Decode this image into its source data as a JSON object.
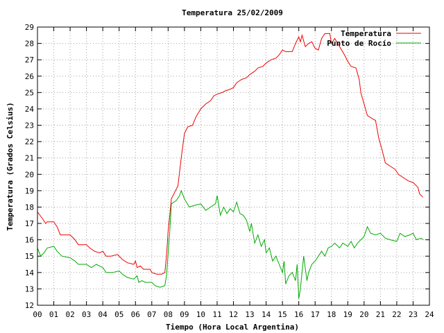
{
  "chart_data": {
    "type": "line",
    "title": "Temperatura 25/02/2009",
    "xlabel": "Tiempo (Hora Local Argentina)",
    "ylabel": "Temperatura (Grados Celsius)",
    "xlim": [
      0,
      24
    ],
    "ylim": [
      12,
      29
    ],
    "x_ticks": [
      "00",
      "01",
      "02",
      "03",
      "04",
      "05",
      "06",
      "07",
      "08",
      "09",
      "10",
      "11",
      "12",
      "13",
      "14",
      "15",
      "16",
      "17",
      "18",
      "19",
      "20",
      "21",
      "22",
      "23",
      "24"
    ],
    "y_ticks": [
      "12",
      "13",
      "14",
      "15",
      "16",
      "17",
      "18",
      "19",
      "20",
      "21",
      "22",
      "23",
      "24",
      "25",
      "26",
      "27",
      "28",
      "29"
    ],
    "grid": true,
    "legend_position": "top-right",
    "series": [
      {
        "name": "Temperatura",
        "color": "#ee0000",
        "points": [
          [
            0.0,
            17.7
          ],
          [
            0.3,
            17.3
          ],
          [
            0.5,
            17.0
          ],
          [
            0.6,
            17.1
          ],
          [
            1.0,
            17.1
          ],
          [
            1.2,
            16.8
          ],
          [
            1.4,
            16.3
          ],
          [
            2.0,
            16.3
          ],
          [
            2.3,
            16.0
          ],
          [
            2.5,
            15.7
          ],
          [
            3.0,
            15.7
          ],
          [
            3.2,
            15.5
          ],
          [
            3.5,
            15.3
          ],
          [
            3.8,
            15.2
          ],
          [
            4.0,
            15.3
          ],
          [
            4.2,
            15.0
          ],
          [
            4.5,
            15.0
          ],
          [
            4.9,
            15.1
          ],
          [
            5.2,
            14.8
          ],
          [
            5.5,
            14.6
          ],
          [
            5.9,
            14.5
          ],
          [
            6.0,
            14.7
          ],
          [
            6.1,
            14.3
          ],
          [
            6.3,
            14.4
          ],
          [
            6.5,
            14.2
          ],
          [
            6.9,
            14.2
          ],
          [
            7.0,
            14.0
          ],
          [
            7.3,
            13.9
          ],
          [
            7.6,
            13.9
          ],
          [
            7.8,
            14.0
          ],
          [
            7.9,
            15.0
          ],
          [
            8.0,
            16.5
          ],
          [
            8.1,
            17.5
          ],
          [
            8.2,
            18.5
          ],
          [
            8.4,
            18.9
          ],
          [
            8.6,
            19.3
          ],
          [
            8.8,
            21.0
          ],
          [
            9.0,
            22.5
          ],
          [
            9.2,
            22.9
          ],
          [
            9.5,
            23.0
          ],
          [
            9.7,
            23.5
          ],
          [
            10.0,
            24.0
          ],
          [
            10.3,
            24.3
          ],
          [
            10.6,
            24.5
          ],
          [
            10.8,
            24.8
          ],
          [
            11.0,
            24.9
          ],
          [
            11.3,
            25.0
          ],
          [
            11.5,
            25.1
          ],
          [
            11.8,
            25.2
          ],
          [
            12.0,
            25.3
          ],
          [
            12.2,
            25.6
          ],
          [
            12.5,
            25.8
          ],
          [
            12.8,
            25.9
          ],
          [
            13.0,
            26.1
          ],
          [
            13.3,
            26.3
          ],
          [
            13.5,
            26.5
          ],
          [
            13.8,
            26.6
          ],
          [
            14.0,
            26.8
          ],
          [
            14.3,
            27.0
          ],
          [
            14.6,
            27.1
          ],
          [
            14.8,
            27.3
          ],
          [
            15.0,
            27.6
          ],
          [
            15.2,
            27.5
          ],
          [
            15.6,
            27.5
          ],
          [
            15.8,
            28.0
          ],
          [
            16.0,
            28.4
          ],
          [
            16.1,
            28.1
          ],
          [
            16.2,
            28.5
          ],
          [
            16.4,
            27.8
          ],
          [
            16.6,
            28.0
          ],
          [
            16.8,
            28.1
          ],
          [
            17.0,
            27.7
          ],
          [
            17.2,
            27.6
          ],
          [
            17.4,
            28.3
          ],
          [
            17.6,
            28.6
          ],
          [
            17.9,
            28.6
          ],
          [
            18.0,
            28.0
          ],
          [
            18.2,
            28.3
          ],
          [
            18.5,
            27.8
          ],
          [
            18.8,
            27.3
          ],
          [
            19.0,
            26.9
          ],
          [
            19.2,
            26.6
          ],
          [
            19.5,
            26.5
          ],
          [
            19.7,
            25.8
          ],
          [
            19.8,
            25.0
          ],
          [
            20.0,
            24.3
          ],
          [
            20.2,
            23.6
          ],
          [
            20.5,
            23.4
          ],
          [
            20.7,
            23.3
          ],
          [
            20.9,
            22.2
          ],
          [
            21.1,
            21.5
          ],
          [
            21.3,
            20.7
          ],
          [
            21.6,
            20.5
          ],
          [
            21.9,
            20.3
          ],
          [
            22.1,
            20.0
          ],
          [
            22.4,
            19.8
          ],
          [
            22.7,
            19.6
          ],
          [
            23.0,
            19.5
          ],
          [
            23.3,
            19.2
          ],
          [
            23.4,
            18.8
          ],
          [
            23.6,
            18.6
          ]
        ]
      },
      {
        "name": "Punto de Rocío",
        "color": "#00aa00",
        "points": [
          [
            0.0,
            15.5
          ],
          [
            0.2,
            15.0
          ],
          [
            0.4,
            15.2
          ],
          [
            0.6,
            15.5
          ],
          [
            1.0,
            15.6
          ],
          [
            1.2,
            15.3
          ],
          [
            1.5,
            15.0
          ],
          [
            2.0,
            14.9
          ],
          [
            2.3,
            14.7
          ],
          [
            2.5,
            14.5
          ],
          [
            3.0,
            14.5
          ],
          [
            3.3,
            14.3
          ],
          [
            3.6,
            14.5
          ],
          [
            4.0,
            14.3
          ],
          [
            4.2,
            14.0
          ],
          [
            4.6,
            14.0
          ],
          [
            5.0,
            14.1
          ],
          [
            5.2,
            13.9
          ],
          [
            5.5,
            13.7
          ],
          [
            5.9,
            13.6
          ],
          [
            6.1,
            13.8
          ],
          [
            6.2,
            13.4
          ],
          [
            6.4,
            13.5
          ],
          [
            6.6,
            13.4
          ],
          [
            7.0,
            13.4
          ],
          [
            7.2,
            13.2
          ],
          [
            7.5,
            13.1
          ],
          [
            7.8,
            13.2
          ],
          [
            7.9,
            13.8
          ],
          [
            8.1,
            16.5
          ],
          [
            8.2,
            18.2
          ],
          [
            8.5,
            18.4
          ],
          [
            8.7,
            18.7
          ],
          [
            8.8,
            19.0
          ],
          [
            9.0,
            18.5
          ],
          [
            9.3,
            18.0
          ],
          [
            9.6,
            18.1
          ],
          [
            10.0,
            18.2
          ],
          [
            10.3,
            17.8
          ],
          [
            10.6,
            18.0
          ],
          [
            10.9,
            18.2
          ],
          [
            11.0,
            18.7
          ],
          [
            11.2,
            17.5
          ],
          [
            11.4,
            18.0
          ],
          [
            11.6,
            17.6
          ],
          [
            11.8,
            17.9
          ],
          [
            12.0,
            17.7
          ],
          [
            12.2,
            18.3
          ],
          [
            12.4,
            17.6
          ],
          [
            12.6,
            17.5
          ],
          [
            12.8,
            17.2
          ],
          [
            13.0,
            16.5
          ],
          [
            13.1,
            17.0
          ],
          [
            13.3,
            15.8
          ],
          [
            13.5,
            16.3
          ],
          [
            13.7,
            15.6
          ],
          [
            13.9,
            16.0
          ],
          [
            14.0,
            15.2
          ],
          [
            14.2,
            15.5
          ],
          [
            14.4,
            14.7
          ],
          [
            14.6,
            15.0
          ],
          [
            14.8,
            14.5
          ],
          [
            15.0,
            14.0
          ],
          [
            15.1,
            14.7
          ],
          [
            15.2,
            13.3
          ],
          [
            15.4,
            13.8
          ],
          [
            15.6,
            14.0
          ],
          [
            15.8,
            13.5
          ],
          [
            15.9,
            14.5
          ],
          [
            16.0,
            12.4
          ],
          [
            16.1,
            13.0
          ],
          [
            16.3,
            15.0
          ],
          [
            16.5,
            13.5
          ],
          [
            16.6,
            14.0
          ],
          [
            16.8,
            14.5
          ],
          [
            17.0,
            14.7
          ],
          [
            17.2,
            15.0
          ],
          [
            17.4,
            15.3
          ],
          [
            17.6,
            15.0
          ],
          [
            17.8,
            15.5
          ],
          [
            18.0,
            15.6
          ],
          [
            18.2,
            15.8
          ],
          [
            18.5,
            15.5
          ],
          [
            18.7,
            15.8
          ],
          [
            19.0,
            15.6
          ],
          [
            19.2,
            15.9
          ],
          [
            19.4,
            15.5
          ],
          [
            19.6,
            15.8
          ],
          [
            19.8,
            16.0
          ],
          [
            20.0,
            16.2
          ],
          [
            20.2,
            16.8
          ],
          [
            20.4,
            16.4
          ],
          [
            20.7,
            16.3
          ],
          [
            21.0,
            16.4
          ],
          [
            21.3,
            16.1
          ],
          [
            21.6,
            16.0
          ],
          [
            22.0,
            15.9
          ],
          [
            22.2,
            16.4
          ],
          [
            22.5,
            16.2
          ],
          [
            22.8,
            16.3
          ],
          [
            23.0,
            16.4
          ],
          [
            23.2,
            16.0
          ],
          [
            23.5,
            16.1
          ],
          [
            23.6,
            16.0
          ]
        ]
      }
    ]
  }
}
